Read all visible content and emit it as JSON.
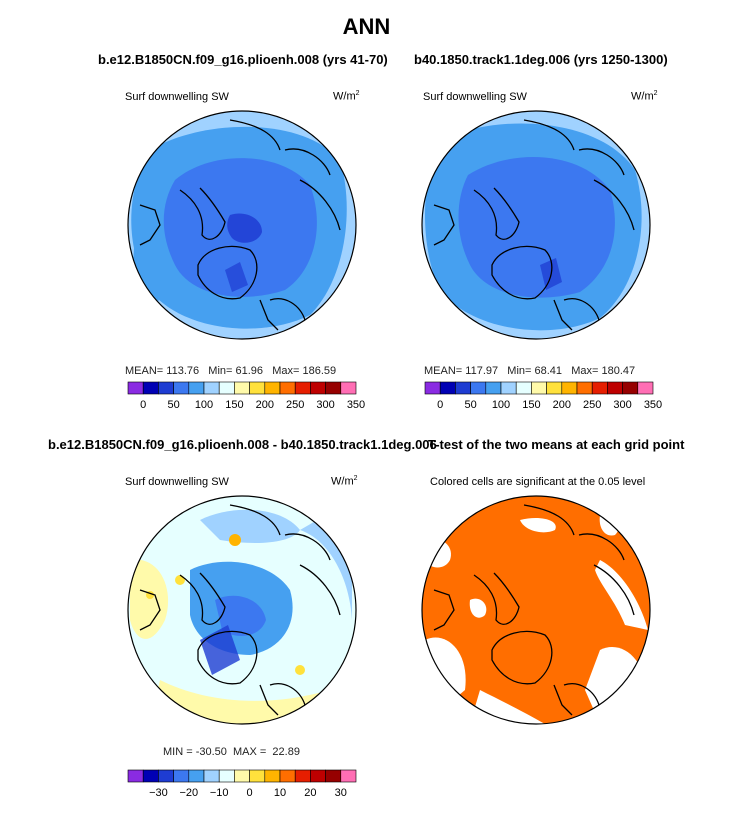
{
  "title": "ANN",
  "panels": [
    {
      "case": "b.e12.B1850CN.f09_g16.plioenh.008 (yrs 41-70)",
      "variable": "Surf downwelling SW",
      "units_base": "W/m",
      "units_exp": "2",
      "stats": {
        "mean_label": "MEAN=",
        "mean": "113.76",
        "min_label": "Min=",
        "min": "61.96",
        "max_label": "Max=",
        "max": "186.59"
      }
    },
    {
      "case": "b40.1850.track1.1deg.006 (yrs 1250-1300)",
      "variable": "Surf downwelling SW",
      "units_base": "W/m",
      "units_exp": "2",
      "stats": {
        "mean_label": "MEAN=",
        "mean": "117.97",
        "min_label": "Min=",
        "min": "68.41",
        "max_label": "Max=",
        "max": "180.47"
      }
    },
    {
      "case": "b.e12.B1850CN.f09_g16.plioenh.008 - b40.1850.track1.1deg.006",
      "variable": "Surf downwelling SW",
      "units_base": "W/m",
      "units_exp": "2",
      "stats_line": "MIN = -30.50  MAX =  22.89"
    },
    {
      "case": "T-test of the two means at each grid point",
      "caption": "Colored cells are significant at the 0.05 level"
    }
  ],
  "colorbar_abs": {
    "colors": [
      "#8a2be2",
      "#0000b4",
      "#1e3cd2",
      "#3c78f0",
      "#46a0f0",
      "#a0d2ff",
      "#e6ffff",
      "#fffaaa",
      "#ffe13c",
      "#ffb400",
      "#ff6e00",
      "#e61e00",
      "#be0000",
      "#960000",
      "#ff6eb4"
    ],
    "labels": [
      "0",
      "50",
      "100",
      "150",
      "200",
      "250",
      "300",
      "350"
    ]
  },
  "colorbar_diff": {
    "colors": [
      "#8a2be2",
      "#0000b4",
      "#1e3cd2",
      "#3c78f0",
      "#46a0f0",
      "#a0d2ff",
      "#e6ffff",
      "#fffaaa",
      "#ffe13c",
      "#ffb400",
      "#ff6e00",
      "#e61e00",
      "#be0000",
      "#960000",
      "#ff6eb4"
    ],
    "labels": [
      "−30",
      "−20",
      "−10",
      "0",
      "10",
      "20",
      "30"
    ]
  },
  "colors": {
    "field_outer": "#a0d2ff",
    "field_mid": "#46a0f0",
    "field_inner": "#3c78f0",
    "field_core": "#1e3cd2",
    "diff_base": "#e6ffff",
    "diff_yellow": "#fffaaa",
    "significant": "#ff6e00"
  }
}
